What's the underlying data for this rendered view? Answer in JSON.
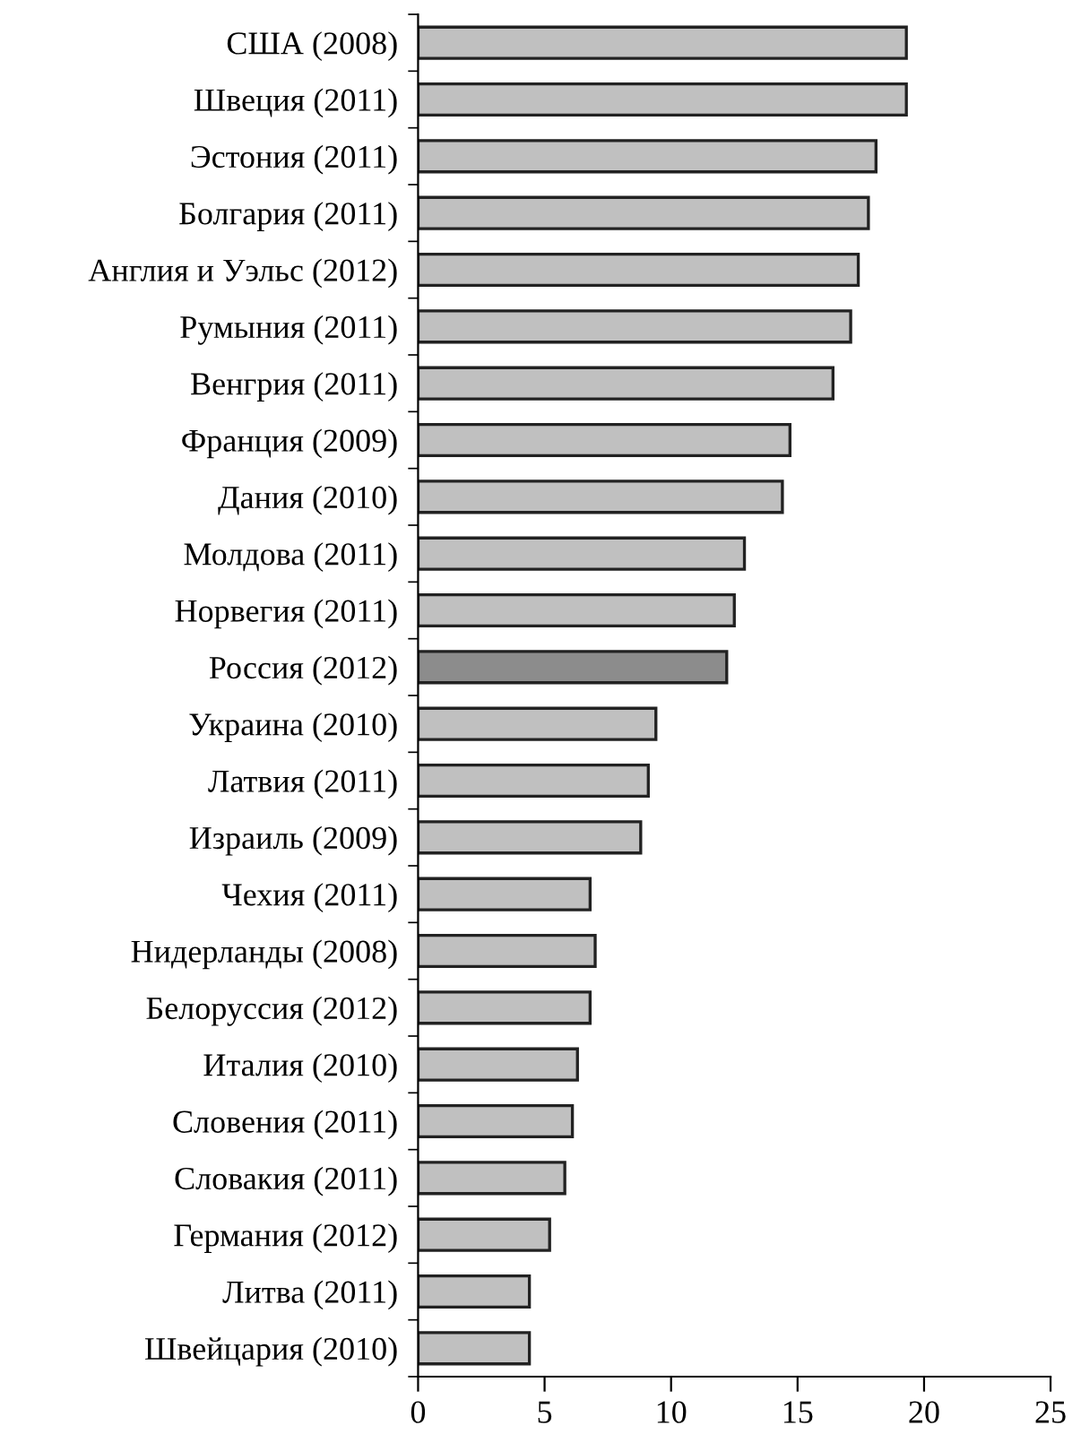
{
  "chart_data": {
    "type": "bar",
    "orientation": "horizontal",
    "categories": [
      "США (2008)",
      "Швеция (2011)",
      "Эстония (2011)",
      "Болгария (2011)",
      "Англия и Уэльс (2012)",
      "Румыния (2011)",
      "Венгрия (2011)",
      "Франция (2009)",
      "Дания (2010)",
      "Молдова (2011)",
      "Норвегия (2011)",
      "Россия (2012)",
      "Украина (2010)",
      "Латвия (2011)",
      "Израиль (2009)",
      "Чехия (2011)",
      "Нидерланды (2008)",
      "Белоруссия (2012)",
      "Италия (2010)",
      "Словения (2011)",
      "Словакия (2011)",
      "Германия (2012)",
      "Литва (2011)",
      "Швейцария (2010)"
    ],
    "values": [
      19.3,
      19.3,
      18.1,
      17.8,
      17.4,
      17.1,
      16.4,
      14.7,
      14.4,
      12.9,
      12.5,
      12.2,
      9.4,
      9.1,
      8.8,
      6.8,
      7.0,
      6.8,
      6.3,
      6.1,
      5.8,
      5.2,
      4.4,
      4.4
    ],
    "colors": [
      "#c0c0c0",
      "#c0c0c0",
      "#c0c0c0",
      "#c0c0c0",
      "#c0c0c0",
      "#c0c0c0",
      "#c0c0c0",
      "#c0c0c0",
      "#c0c0c0",
      "#c0c0c0",
      "#c0c0c0",
      "#8c8c8c",
      "#c0c0c0",
      "#c0c0c0",
      "#c0c0c0",
      "#c0c0c0",
      "#c0c0c0",
      "#c0c0c0",
      "#c0c0c0",
      "#c0c0c0",
      "#c0c0c0",
      "#c0c0c0",
      "#c0c0c0",
      "#c0c0c0"
    ],
    "xlim": [
      0,
      25
    ],
    "xticks": [
      0,
      5,
      10,
      15,
      20,
      25
    ],
    "grid": false,
    "legend": false
  }
}
